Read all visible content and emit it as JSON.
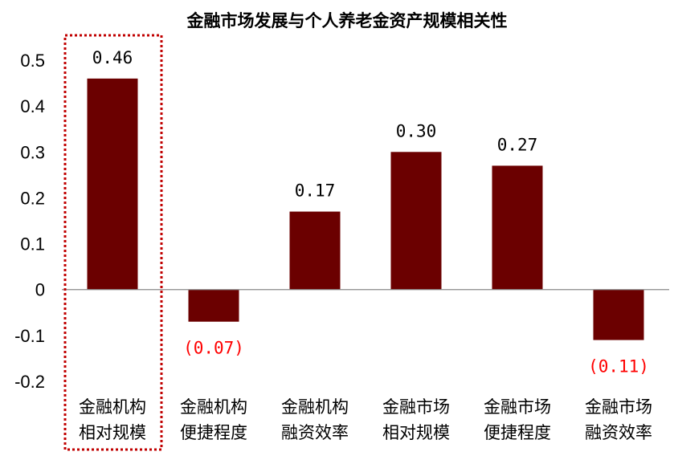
{
  "chart_data": {
    "type": "bar",
    "title": "金融市场发展与个人养老金资产规模相关性",
    "xlabel": "",
    "ylabel": "",
    "ylim": [
      -0.2,
      0.5
    ],
    "yticks": [
      "0.5",
      "0.4",
      "0.3",
      "0.2",
      "0.1",
      "0",
      "-0.1",
      "-0.2"
    ],
    "ytick_values": [
      0.5,
      0.4,
      0.3,
      0.2,
      0.1,
      0,
      -0.1,
      -0.2
    ],
    "grid": false,
    "legend": "none",
    "categories": [
      [
        "金融机构",
        "相对规模"
      ],
      [
        "金融机构",
        "便捷程度"
      ],
      [
        "金融机构",
        "融资效率"
      ],
      [
        "金融市场",
        "相对规模"
      ],
      [
        "金融市场",
        "便捷程度"
      ],
      [
        "金融市场",
        "融资效率"
      ]
    ],
    "values": [
      0.46,
      -0.07,
      0.17,
      0.3,
      0.27,
      -0.11
    ],
    "data_labels": [
      "0.46",
      "(0.07)",
      "0.17",
      "0.30",
      "0.27",
      "(0.11)"
    ],
    "highlighted_category_index": 0,
    "colors": {
      "bar": "#6b0000",
      "positive_label": "#000000",
      "negative_label": "#ff0000",
      "highlight_border": "#c00000",
      "axis": "#888888"
    }
  }
}
